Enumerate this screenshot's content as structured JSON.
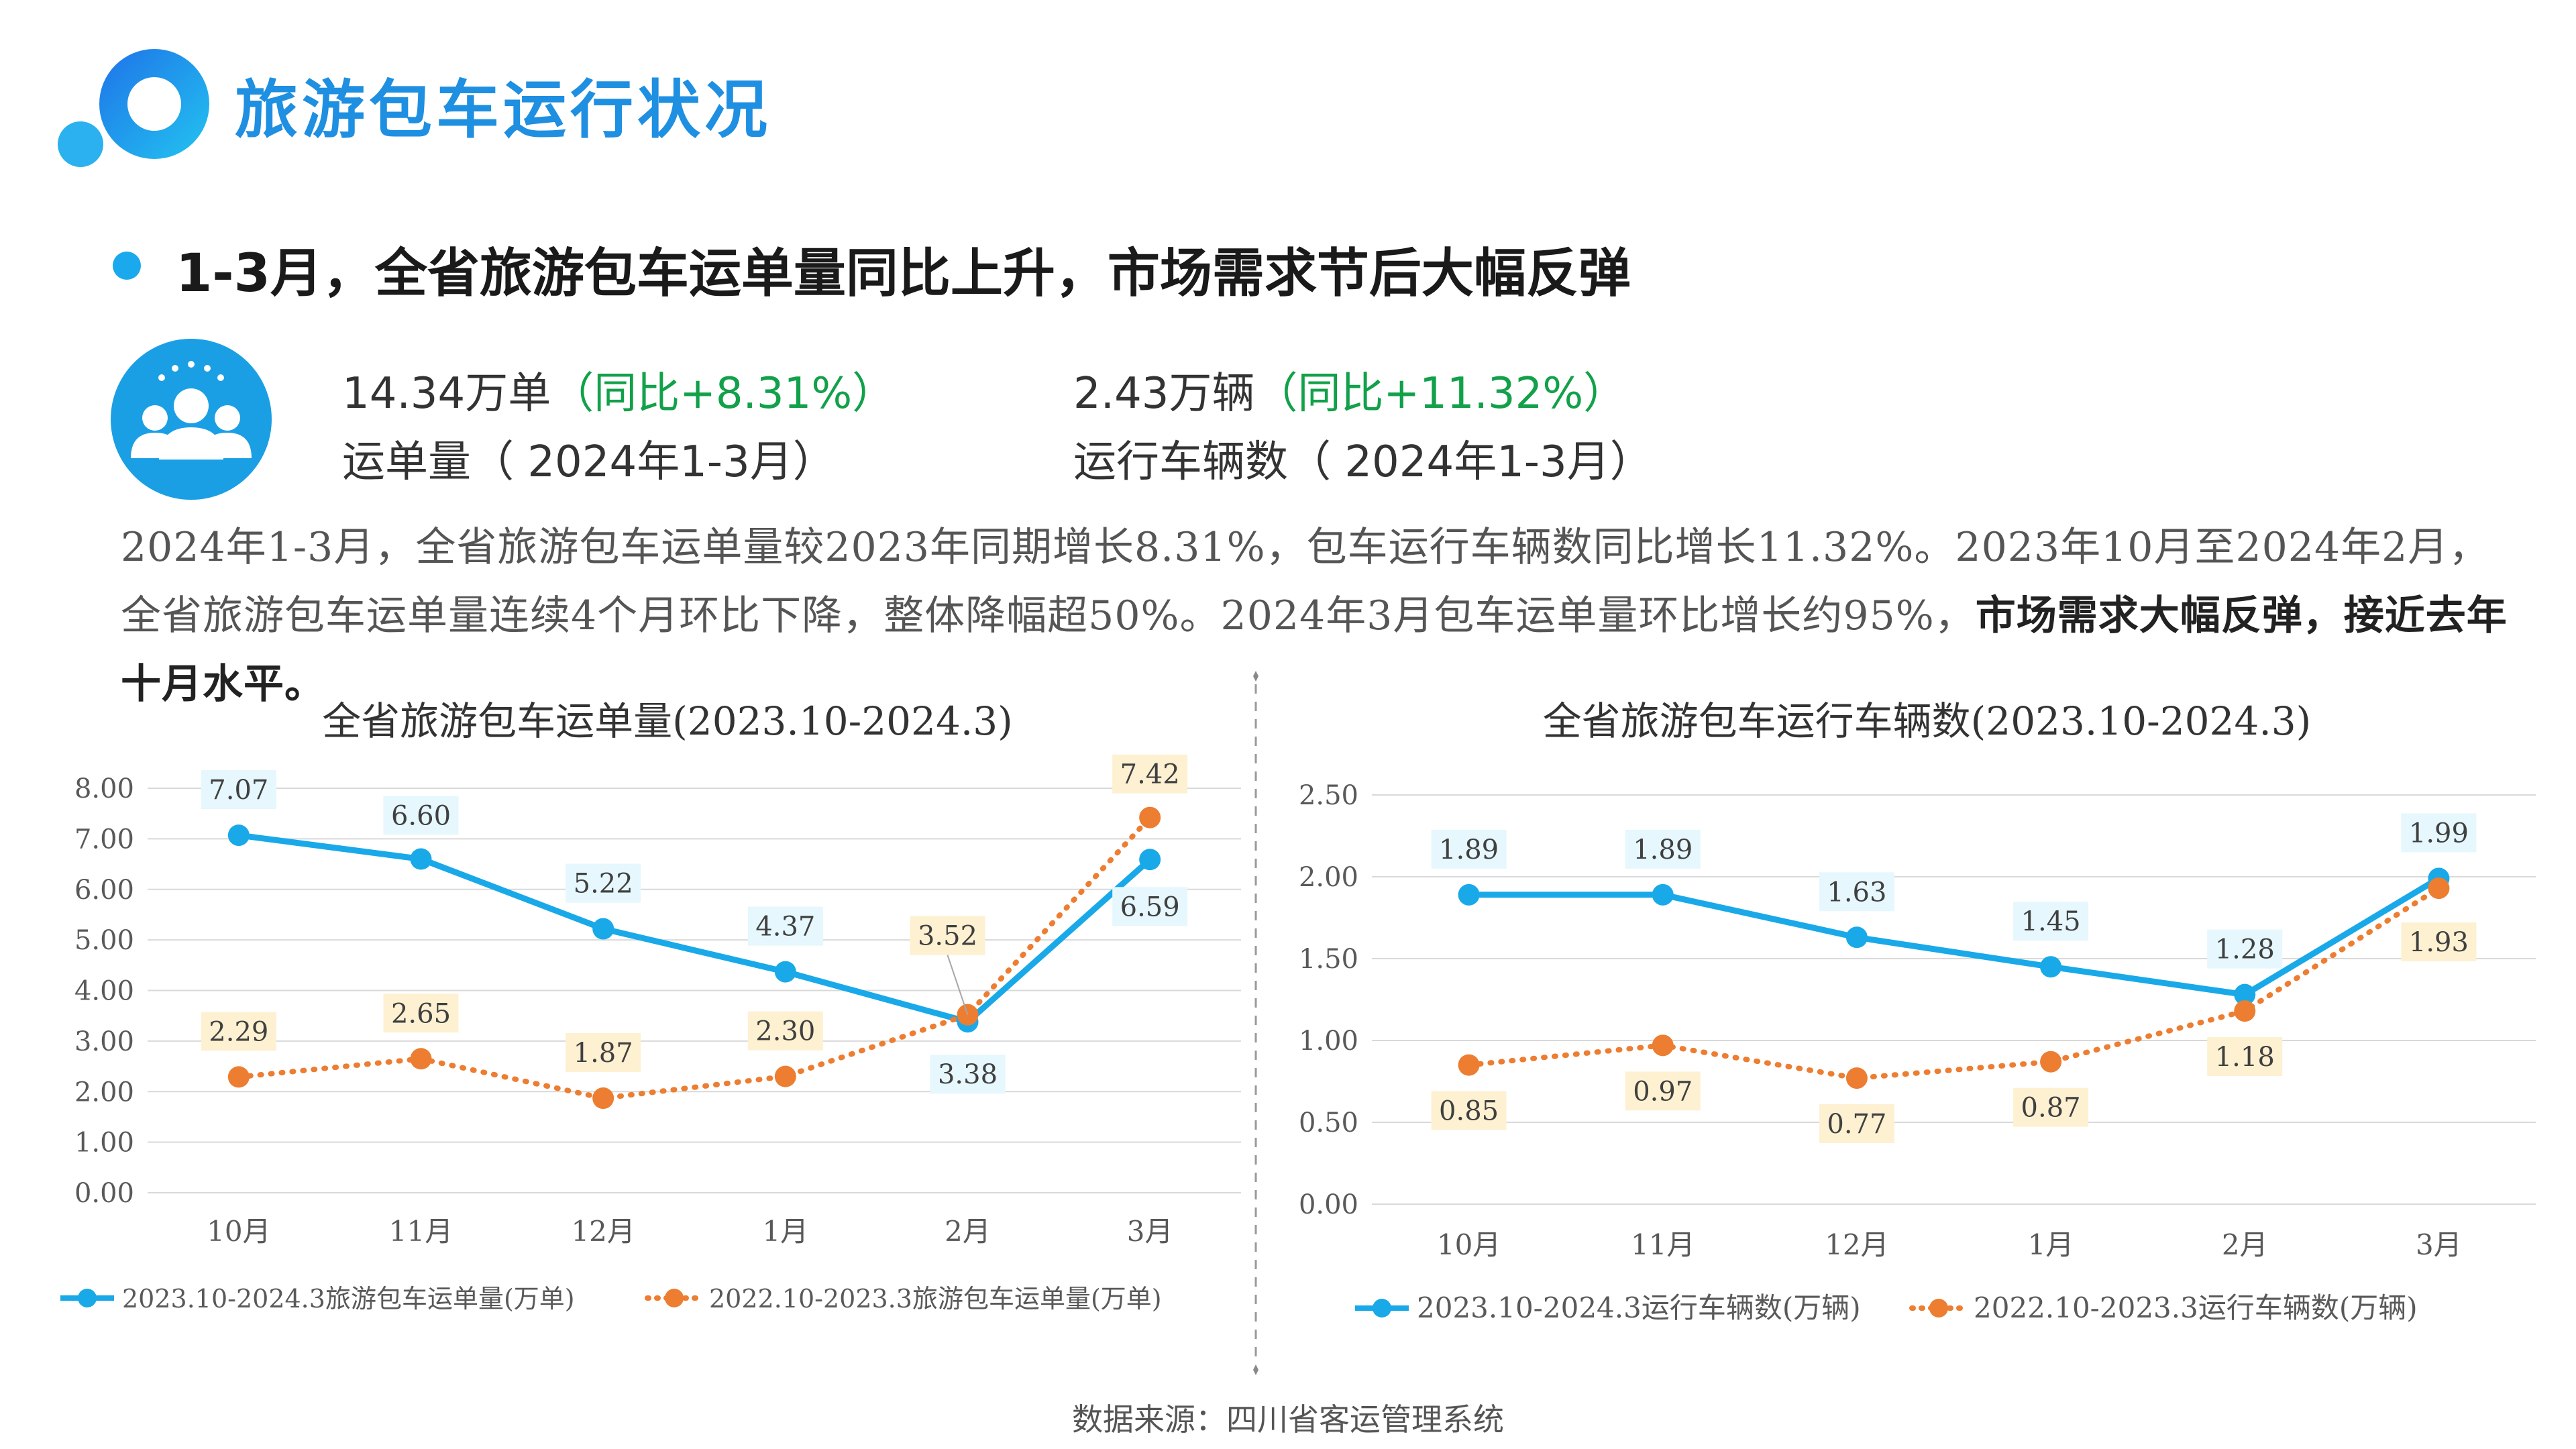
{
  "header": {
    "title": "旅游包车运行状况",
    "headline": "1-3月，全省旅游包车运单量同比上升，市场需求节后大幅反弹"
  },
  "kpis": [
    {
      "value": "14.34万单",
      "change": "（同比+8.31%）",
      "label": "运单量（ 2024年1-3月）"
    },
    {
      "value": "2.43万辆",
      "change": "（同比+11.32%）",
      "label": "运行车辆数（ 2024年1-3月）"
    }
  ],
  "summary": {
    "part1": "2024年1-3月，全省旅游包车运单量较2023年同期增长8.31%，包车运行车辆数同比增长11.32%。2023年10月至2024年2月，全省旅游包车运单量连续4个月环比下降，整体降幅超50%。2024年3月包车运单量环比增长约95%，",
    "emphasis": "市场需求大幅反弹，接近去年十月水平。"
  },
  "source": "数据来源：四川省客运管理系统",
  "colors": {
    "accent": "#1e8fe1",
    "blue": "#19a9e8",
    "orange": "#ed7d31",
    "green": "#12a14a"
  },
  "chart_data": [
    {
      "type": "line",
      "title": "全省旅游包车运单量(2023.10-2024.3)",
      "categories": [
        "10月",
        "11月",
        "12月",
        "1月",
        "2月",
        "3月"
      ],
      "ylim": [
        0,
        8
      ],
      "yticks": [
        "8.00",
        "7.00",
        "6.00",
        "5.00",
        "4.00",
        "3.00",
        "2.00",
        "1.00",
        "0.00"
      ],
      "grid": true,
      "legend": "bottom",
      "series": [
        {
          "name": "2023.10-2024.3旅游包车运单量(万单)",
          "style": "solid",
          "color": "#19a9e8",
          "values": [
            7.07,
            6.6,
            5.22,
            4.37,
            3.38,
            6.59
          ],
          "labels": [
            "7.07",
            "6.60",
            "5.22",
            "4.37",
            "3.38",
            "6.59"
          ]
        },
        {
          "name": "2022.10-2023.3旅游包车运单量(万单)",
          "style": "dotted",
          "color": "#ed7d31",
          "values": [
            2.29,
            2.65,
            1.87,
            2.3,
            3.52,
            7.42
          ],
          "labels": [
            "2.29",
            "2.65",
            "1.87",
            "2.30",
            "3.52",
            "7.42"
          ]
        }
      ]
    },
    {
      "type": "line",
      "title": "全省旅游包车运行车辆数(2023.10-2024.3)",
      "categories": [
        "10月",
        "11月",
        "12月",
        "1月",
        "2月",
        "3月"
      ],
      "ylim": [
        0,
        2.5
      ],
      "yticks": [
        "2.50",
        "2.00",
        "1.50",
        "1.00",
        "0.50",
        "0.00"
      ],
      "grid": true,
      "legend": "bottom",
      "series": [
        {
          "name": "2023.10-2024.3运行车辆数(万辆)",
          "style": "solid",
          "color": "#19a9e8",
          "values": [
            1.89,
            1.89,
            1.63,
            1.45,
            1.28,
            1.99
          ],
          "labels": [
            "1.89",
            "1.89",
            "1.63",
            "1.45",
            "1.28",
            "1.99"
          ]
        },
        {
          "name": "2022.10-2023.3运行车辆数(万辆)",
          "style": "dotted",
          "color": "#ed7d31",
          "values": [
            0.85,
            0.97,
            0.77,
            0.87,
            1.18,
            1.93
          ],
          "labels": [
            "0.85",
            "0.97",
            "0.77",
            "0.87",
            "1.18",
            "1.93"
          ]
        }
      ]
    }
  ]
}
